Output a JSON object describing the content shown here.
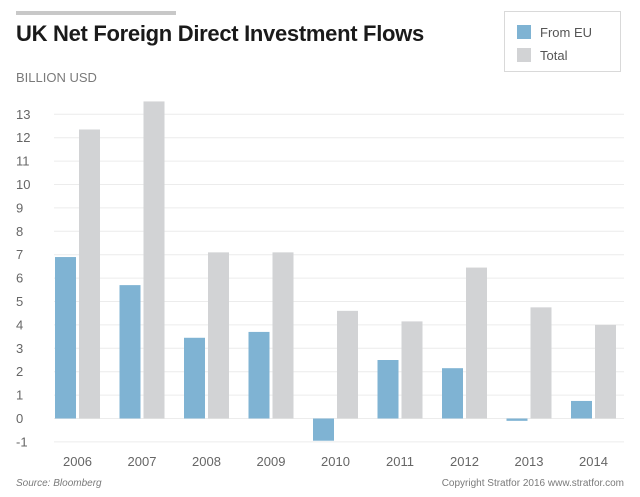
{
  "title": "UK Net Foreign Direct Investment Flows",
  "unit_label": "BILLION USD",
  "source": "Source: Bloomberg",
  "copyright": "Copyright Stratfor 2016   www.stratfor.com",
  "colors": {
    "from_eu": "#7fb3d3",
    "total": "#d2d3d5",
    "grid": "#ececec",
    "text": "#666666"
  },
  "chart_data": {
    "type": "bar",
    "title": "UK Net Foreign Direct Investment Flows",
    "ylabel": "BILLION USD",
    "xlabel": "",
    "categories": [
      "2006",
      "2007",
      "2008",
      "2009",
      "2010",
      "2011",
      "2012",
      "2013",
      "2014"
    ],
    "series": [
      {
        "name": "From EU",
        "values": [
          6.9,
          5.7,
          3.45,
          3.7,
          -0.95,
          2.5,
          2.15,
          -0.1,
          0.75
        ]
      },
      {
        "name": "Total",
        "values": [
          12.35,
          13.55,
          7.1,
          7.1,
          4.6,
          4.15,
          6.45,
          4.75,
          4.0
        ]
      }
    ],
    "ylim": [
      -1,
      13.5
    ],
    "yticks": [
      "-1",
      "0",
      "1",
      "2",
      "3",
      "4",
      "5",
      "6",
      "7",
      "8",
      "9",
      "10",
      "11",
      "12",
      "13"
    ],
    "grid": true,
    "legend": "top-right"
  }
}
